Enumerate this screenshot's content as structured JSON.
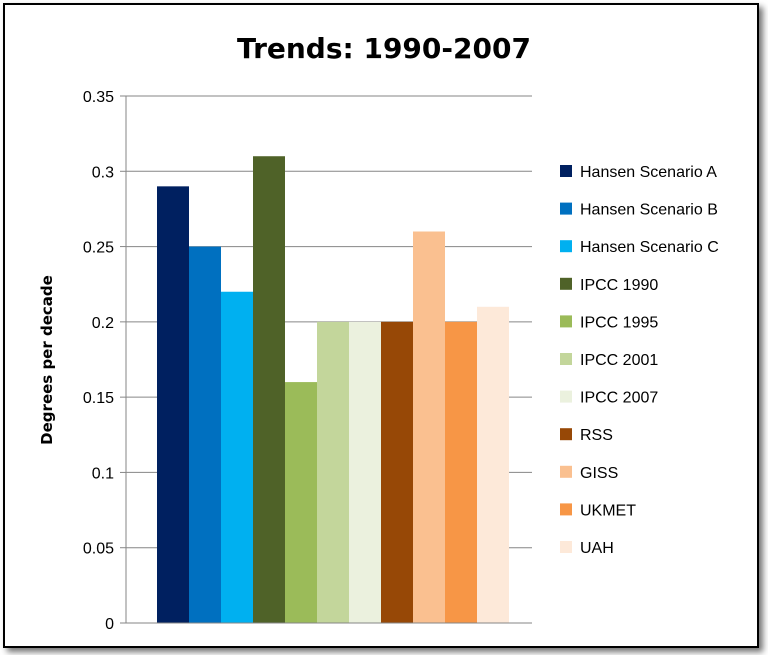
{
  "chart_data": {
    "type": "bar",
    "title": "Trends: 1990-2007",
    "xlabel": "",
    "ylabel": "Degrees per decade",
    "ylim": [
      0,
      0.35
    ],
    "yticks": [
      "0",
      "0.05",
      "0.1",
      "0.15",
      "0.2",
      "0.25",
      "0.3",
      "0.35"
    ],
    "grid": true,
    "legend_position": "right",
    "series": [
      {
        "name": "Hansen Scenario A",
        "value": 0.29,
        "color": "#002060"
      },
      {
        "name": "Hansen Scenario B",
        "value": 0.25,
        "color": "#0070C0"
      },
      {
        "name": "Hansen Scenario C",
        "value": 0.22,
        "color": "#00B0F0"
      },
      {
        "name": "IPCC 1990",
        "value": 0.31,
        "color": "#4F6228"
      },
      {
        "name": "IPCC 1995",
        "value": 0.16,
        "color": "#9BBB59"
      },
      {
        "name": "IPCC 2001",
        "value": 0.2,
        "color": "#C3D69B"
      },
      {
        "name": "IPCC 2007",
        "value": 0.2,
        "color": "#EBF1DE"
      },
      {
        "name": "RSS",
        "value": 0.2,
        "color": "#974806"
      },
      {
        "name": "GISS",
        "value": 0.26,
        "color": "#FAC090"
      },
      {
        "name": "UKMET",
        "value": 0.2,
        "color": "#F79646"
      },
      {
        "name": "UAH",
        "value": 0.21,
        "color": "#FDE9D9"
      }
    ]
  }
}
